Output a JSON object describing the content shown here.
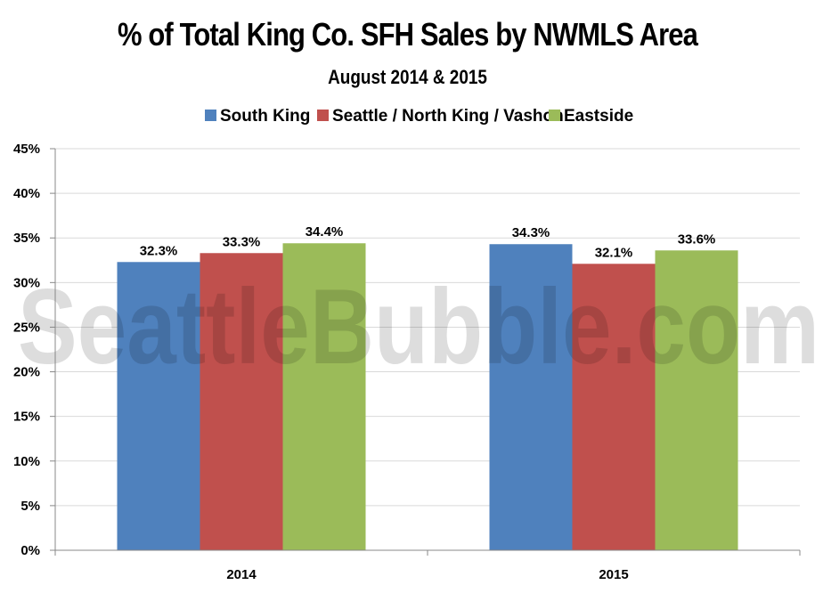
{
  "chart_data": {
    "type": "bar",
    "title": "% of Total King Co. SFH Sales by NWMLS Area",
    "subtitle": "August 2014 & 2015",
    "categories": [
      "2014",
      "2015"
    ],
    "series": [
      {
        "name": "South King",
        "color": "#4f81bd",
        "values": [
          32.3,
          34.3
        ],
        "labels": [
          "32.3%",
          "34.3%"
        ]
      },
      {
        "name": "Seattle / North King / Vashon",
        "color": "#c0504d",
        "values": [
          33.3,
          32.1
        ],
        "labels": [
          "33.3%",
          "32.1%"
        ]
      },
      {
        "name": "Eastside",
        "color": "#9bbb59",
        "values": [
          34.4,
          33.6
        ],
        "labels": [
          "34.4%",
          "33.6%"
        ]
      }
    ],
    "ylim": [
      0,
      45
    ],
    "yticks": [
      "0%",
      "5%",
      "10%",
      "15%",
      "20%",
      "25%",
      "30%",
      "35%",
      "40%",
      "45%"
    ],
    "grid": true,
    "legend_position": "top"
  },
  "watermark": "SeattleBubble.com"
}
